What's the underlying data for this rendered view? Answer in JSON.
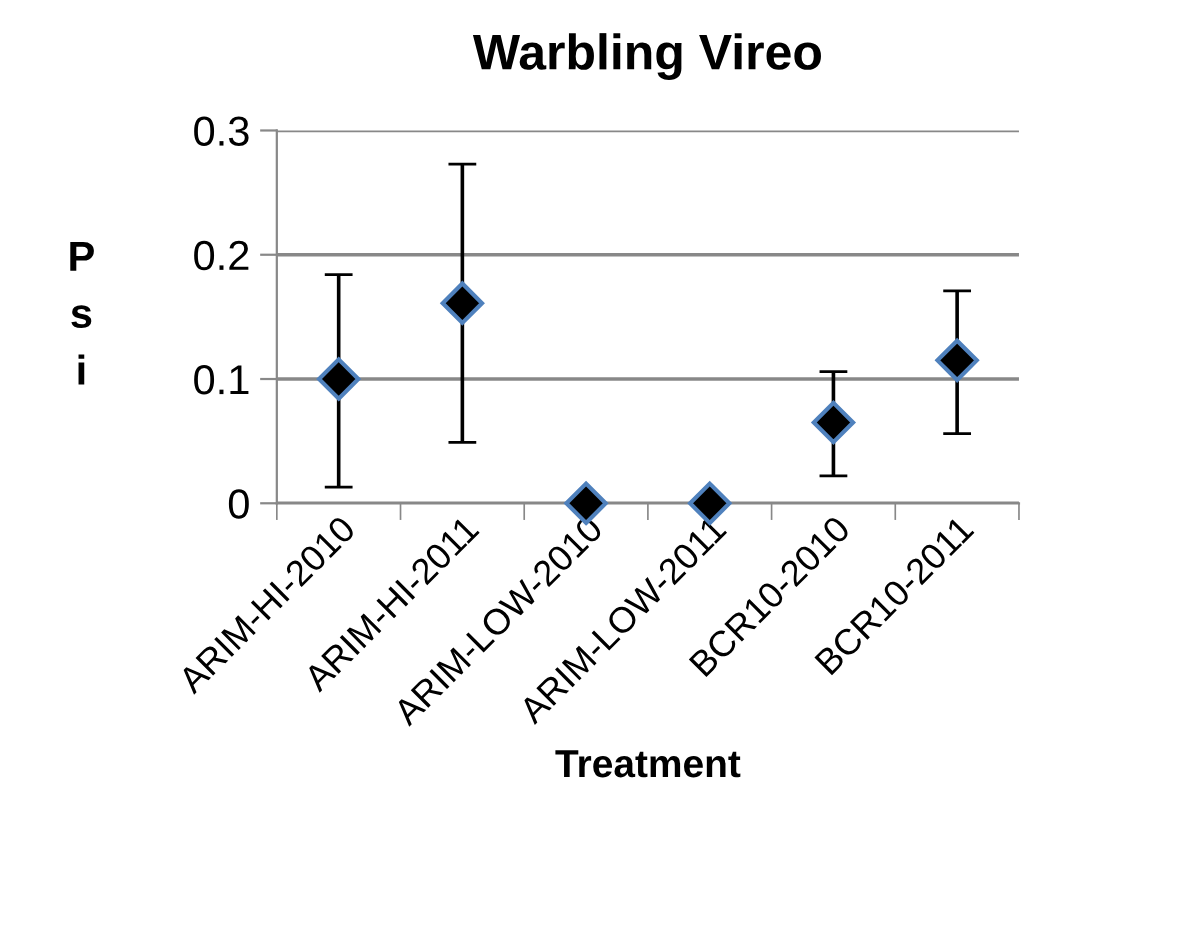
{
  "chart_data": {
    "type": "scatter",
    "title": "Warbling Vireo",
    "xlabel": "Treatment",
    "ylabel": "Psi",
    "categories": [
      "ARIM-HI-2010",
      "ARIM-HI-2011",
      "ARIM-LOW-2010",
      "ARIM-LOW-2011",
      "BCR10-2010",
      "BCR10-2011"
    ],
    "series": [
      {
        "color": "#000000",
        "values": [
          0.1,
          0.161,
          0,
          0,
          0.065,
          0.115
        ],
        "errors": [
          [
            0.013,
            0.184
          ],
          [
            0.049,
            0.273
          ],
          null,
          null,
          [
            0.022,
            0.106
          ],
          [
            0.056,
            0.171
          ]
        ]
      }
    ],
    "ylim": [
      0,
      0.3
    ],
    "yticks": [
      {
        "value": 0,
        "label": "0"
      },
      0.1,
      0.2,
      0.3
    ],
    "grid": "y",
    "marker": "diamond",
    "legend": false
  }
}
